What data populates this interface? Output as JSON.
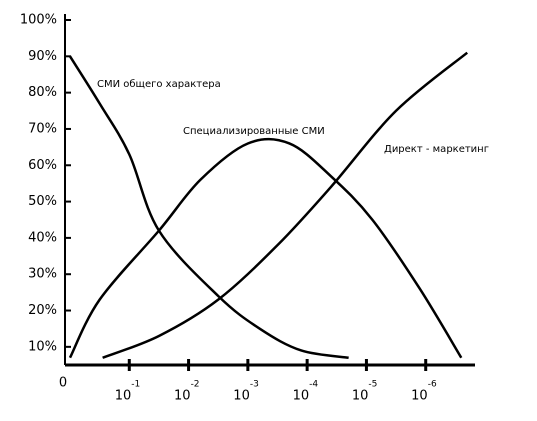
{
  "chart_data": {
    "type": "line",
    "xlim": [
      0,
      7
    ],
    "ylim": [
      5,
      100
    ],
    "xticks": [
      0,
      {
        "value": 1,
        "label": "10",
        "exponent": "-1"
      },
      {
        "value": 2,
        "label": "10",
        "exponent": "-2"
      },
      {
        "value": 3,
        "label": "10",
        "exponent": "-3"
      },
      {
        "value": 4,
        "label": "10",
        "exponent": "-4"
      },
      {
        "value": 5,
        "label": "10",
        "exponent": "-5"
      },
      {
        "value": 6,
        "label": "10",
        "exponent": "-6"
      }
    ],
    "yticks": [
      {
        "value": 10,
        "label": "10%"
      },
      {
        "value": 20,
        "label": "20%"
      },
      {
        "value": 30,
        "label": "30%"
      },
      {
        "value": 40,
        "label": "40%"
      },
      {
        "value": 50,
        "label": "50%"
      },
      {
        "value": 60,
        "label": "60%"
      },
      {
        "value": 70,
        "label": "70%"
      },
      {
        "value": 80,
        "label": "80%"
      },
      {
        "value": 90,
        "label": "90%"
      },
      {
        "value": 100,
        "label": "100%"
      }
    ],
    "series": [
      {
        "name": "СМИ общего характера",
        "color": "#000000",
        "x": [
          0,
          0.5,
          1,
          1.5,
          2.5,
          3.2,
          3.9,
          4.7
        ],
        "values": [
          90,
          77,
          63,
          42,
          24,
          15,
          9,
          7
        ]
      },
      {
        "name": "Специализированные СМИ",
        "color": "#000000",
        "x": [
          0,
          0.5,
          1.5,
          2.2,
          3.0,
          3.7,
          4.4,
          5.1,
          5.9,
          6.6
        ],
        "values": [
          7,
          23,
          42,
          56,
          66,
          66,
          57,
          45,
          26,
          7
        ]
      },
      {
        "name": "Директ - маркетинг",
        "color": "#000000",
        "x": [
          0.55,
          1.5,
          2.5,
          3.5,
          4.4,
          5.5,
          6.7
        ],
        "values": [
          7,
          13,
          23,
          38,
          54,
          75,
          91
        ]
      }
    ]
  }
}
